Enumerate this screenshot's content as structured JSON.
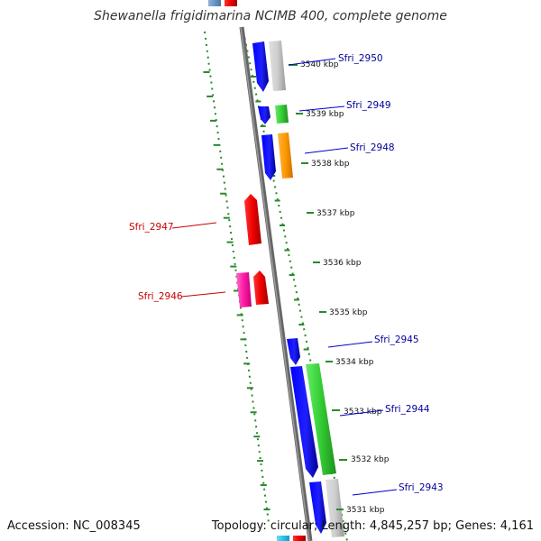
{
  "title": "Shewanella frigidimarina NCIMB 400, complete genome",
  "accession": "Accession: NC_008345",
  "summary": "Topology: circular; Length: 4,845,257 bp; Genes: 4,161",
  "scale_labels": [
    "3540 kbp",
    "3539 kbp",
    "3538 kbp",
    "3537 kbp",
    "3536 kbp",
    "3535 kbp",
    "3534 kbp",
    "3533 kbp",
    "3532 kbp",
    "3531 kbp"
  ],
  "genes": [
    {
      "name": "Sfri_2950",
      "color": "#000099"
    },
    {
      "name": "Sfri_2949",
      "color": "#000099"
    },
    {
      "name": "Sfri_2948",
      "color": "#000099"
    },
    {
      "name": "Sfri_2947",
      "color": "#cc0000"
    },
    {
      "name": "Sfri_2946",
      "color": "#cc0000"
    },
    {
      "name": "Sfri_2945",
      "color": "#000099"
    },
    {
      "name": "Sfri_2944",
      "color": "#000099"
    },
    {
      "name": "Sfri_2943",
      "color": "#000099"
    }
  ]
}
